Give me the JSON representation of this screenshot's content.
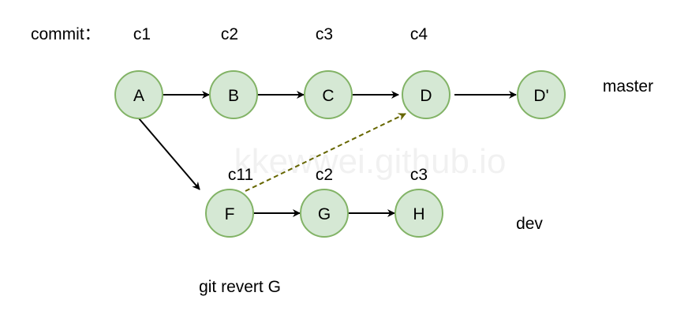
{
  "labels": {
    "commit": "commit：",
    "top_commits": [
      "c1",
      "c2",
      "c3",
      "c4"
    ],
    "bottom_commits": [
      "c11",
      "c2",
      "c3"
    ],
    "master": "master",
    "dev": "dev",
    "caption": "git revert G",
    "watermark": "kkewwei.github.io"
  },
  "nodes": {
    "A": "A",
    "B": "B",
    "C": "C",
    "D": "D",
    "Dp": "D'",
    "F": "F",
    "G": "G",
    "H": "H"
  },
  "colors": {
    "node_fill": "#d5e8d4",
    "node_stroke": "#82b366",
    "edge": "#000000",
    "dashed_edge": "#666600"
  }
}
